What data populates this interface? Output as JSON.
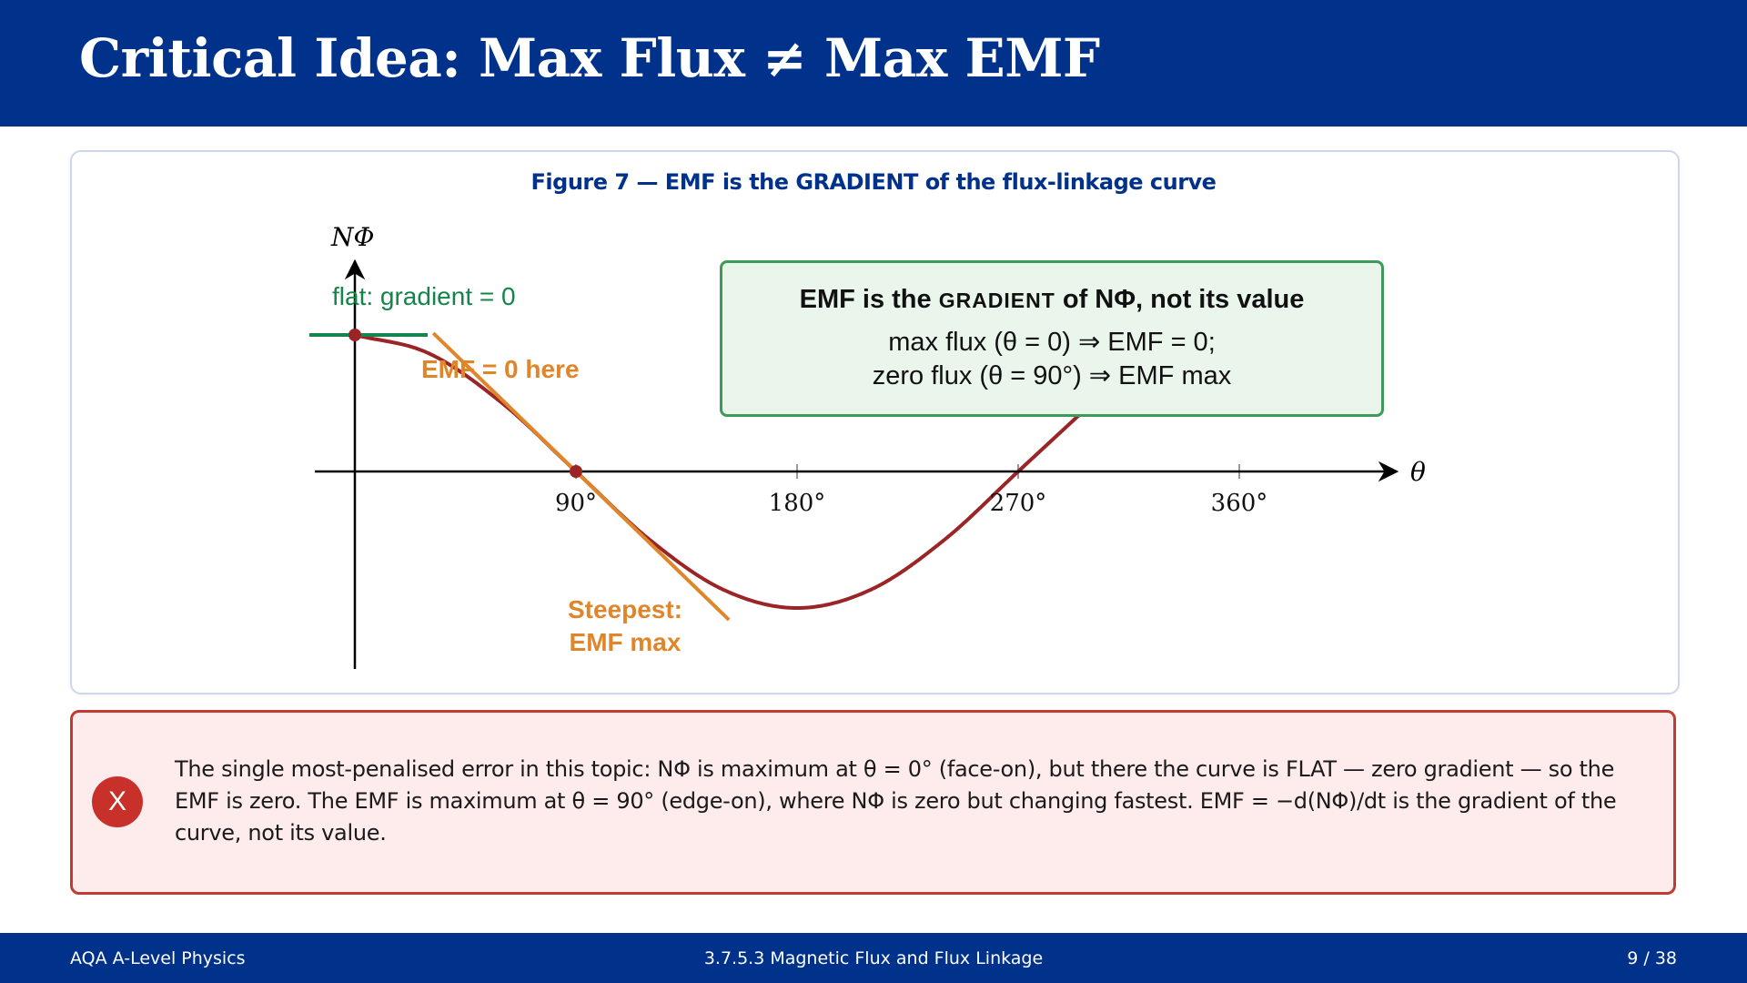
{
  "slide": {
    "title": "Critical Idea: Max Flux ≠ Max EMF"
  },
  "figure": {
    "caption": "Figure 7 — EMF is the GRADIENT of the flux-linkage curve",
    "y_axis_label": "NΦ",
    "x_axis_label": "θ",
    "annotations": {
      "flat": "flat: gradient = 0",
      "emf_zero": "EMF = 0 here",
      "steepest_line1": "Steepest:",
      "steepest_line2": "EMF max"
    },
    "callout": {
      "heading_pre": "EMF is the",
      "heading_sc": "GRADIENT",
      "heading_post": "of NΦ, not its value",
      "line1": "max flux (θ = 0) ⇒ EMF = 0;",
      "line2": "zero flux (θ = 90°) ⇒ EMF max"
    },
    "colors": {
      "curve": "#9b2426",
      "flat_tangent": "#14854a",
      "steep_tangent": "#e0862a",
      "axes": "#000000"
    }
  },
  "chart_data": {
    "type": "line",
    "series": [
      {
        "x": [
          0,
          30,
          60,
          90,
          120,
          150,
          180,
          210,
          240,
          270,
          300
        ],
        "y": [
          1,
          0.866,
          0.5,
          0,
          -0.5,
          -0.866,
          -1,
          -0.866,
          -0.5,
          0,
          0.5
        ]
      }
    ],
    "x_ticks": [
      "90°",
      "180°",
      "270°",
      "360°"
    ],
    "x_tick_values": [
      90,
      180,
      270,
      360
    ],
    "xlabel": "θ",
    "ylabel": "NΦ",
    "marked_points": [
      {
        "x": 0,
        "y": 1
      },
      {
        "x": 90,
        "y": 0
      }
    ],
    "grid": false
  },
  "warning": {
    "badge": "X",
    "text": "The single most-penalised error in this topic: NΦ is maximum at θ = 0° (face-on), but there the curve is FLAT — zero gradient — so the EMF is zero. The EMF is maximum at θ = 90° (edge-on), where NΦ is zero but changing fastest. EMF = −d(NΦ)/dt is the gradient of the curve, not its value."
  },
  "footer": {
    "left": "AQA A-Level Physics",
    "center": "3.7.5.3  Magnetic Flux and Flux Linkage",
    "right": "9 / 38"
  }
}
